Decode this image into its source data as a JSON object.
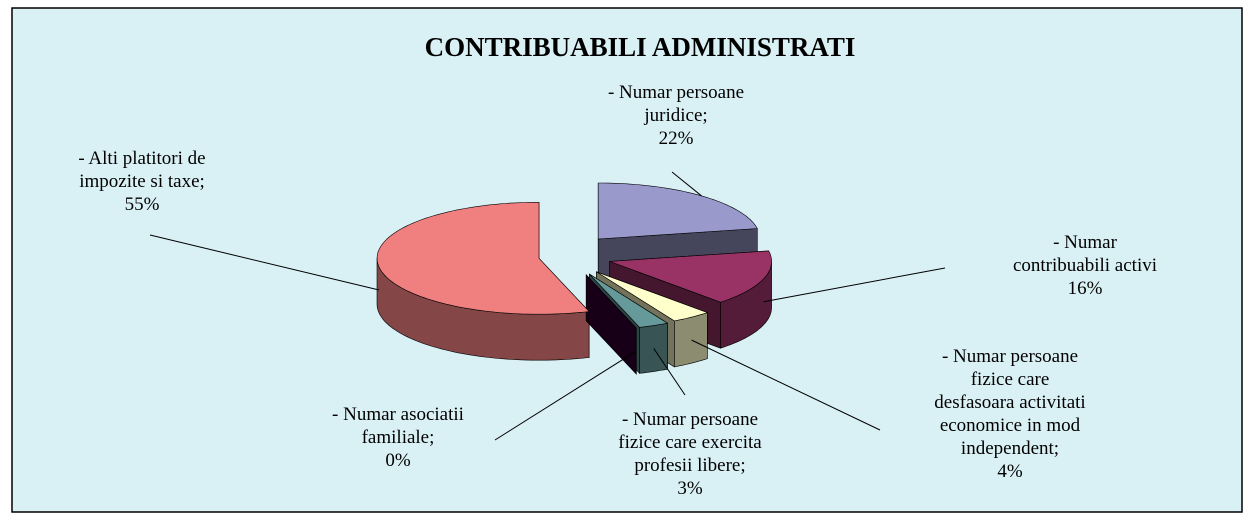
{
  "chart_data": {
    "type": "pie",
    "title": "CONTRIBUABILI ADMINISTRATI",
    "categories": [
      "- Numar persoane juridice;",
      "- Numar contribuabili activi",
      "- Numar persoane fizice care desfasoara activitati economice in mod independent;",
      "- Numar persoane fizice care exercita profesii libere;",
      "- Numar asociatii familiale;",
      "- Alti platitori de impozite si taxe;"
    ],
    "values": [
      22,
      16,
      4,
      3,
      0,
      55
    ],
    "value_labels": [
      "22%",
      "16%",
      "4%",
      "3%",
      "0%",
      "55%"
    ],
    "colors": [
      "#9999cc",
      "#993366",
      "#ffffcc",
      "#669999",
      "#330033",
      "#f08080"
    ]
  }
}
